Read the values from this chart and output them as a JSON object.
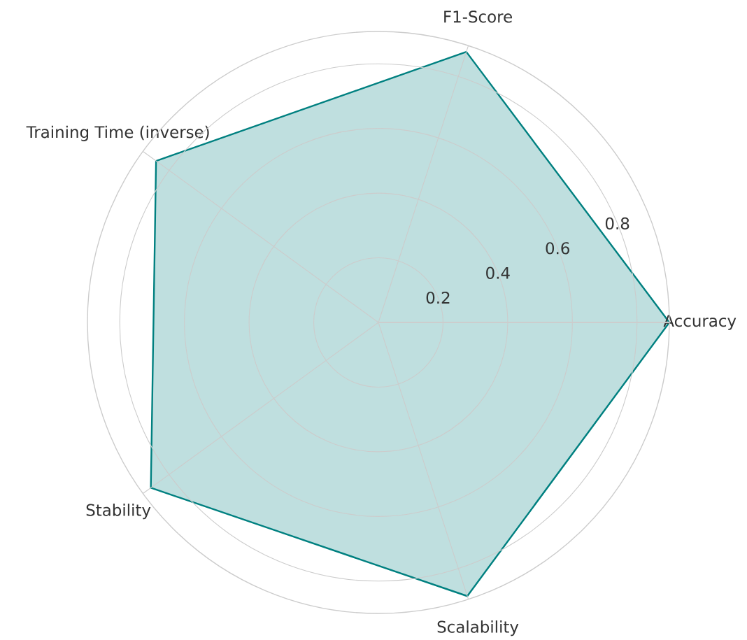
{
  "chart_data": {
    "type": "radar",
    "categories": [
      "F1-Score",
      "Accuracy",
      "Scalability",
      "Stability",
      "Training Time (inverse)"
    ],
    "series": [
      {
        "color": "#008080",
        "values": [
          0.88,
          0.9,
          0.89,
          0.87,
          0.85
        ]
      }
    ],
    "ylim": [
      0,
      0.9
    ],
    "yticks": [
      0.2,
      0.4,
      0.6,
      0.8
    ],
    "grid": true
  }
}
